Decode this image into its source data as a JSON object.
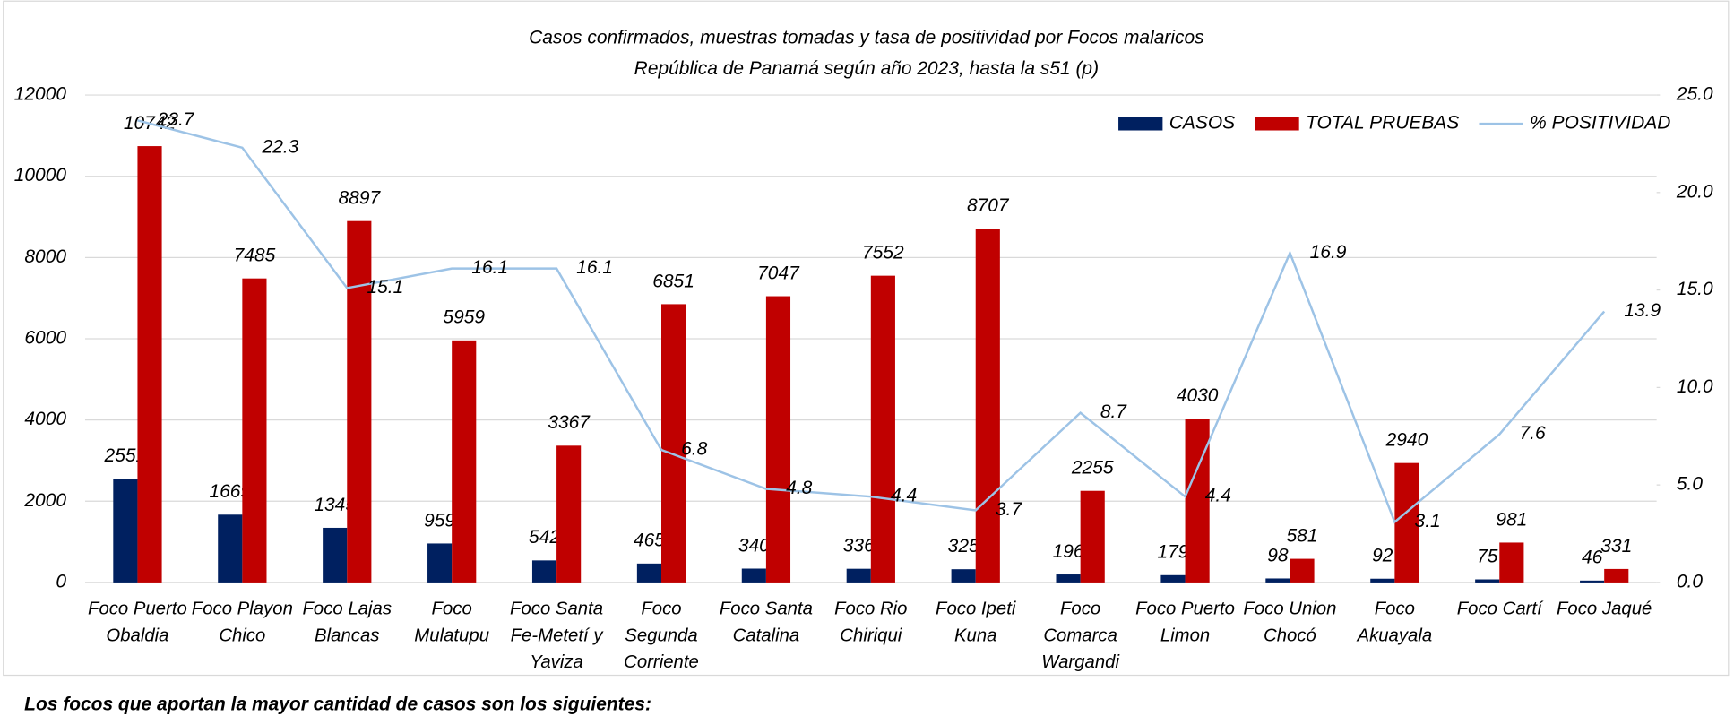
{
  "chart_data": {
    "type": "bar",
    "title": "Casos confirmados, muestras tomadas y tasa de positividad por Focos malaricos",
    "subtitle": "República de Panamá  según año 2023, hasta la s51 (p)",
    "categories": [
      "Foco Puerto Obaldia",
      "Foco Playon Chico",
      "Foco Lajas Blancas",
      "Foco Mulatupu",
      "Foco Santa Fe-Metetí y Yaviza",
      "Foco Segunda Corriente",
      "Foco Santa Catalina",
      "Foco Rio Chiriqui",
      "Foco Ipeti Kuna",
      "Foco Comarca Wargandi",
      "Foco Puerto Limon",
      "Foco Union Chocó",
      "Foco Akuayala",
      "Foco Cartí",
      "Foco Jaqué"
    ],
    "series": [
      {
        "name": "CASOS",
        "color": "#002060",
        "type": "bar",
        "values": [
          2551,
          1669,
          1345,
          959,
          542,
          465,
          340,
          336,
          325,
          196,
          179,
          98,
          92,
          75,
          46
        ]
      },
      {
        "name": "TOTAL PRUEBAS",
        "color": "#c00000",
        "type": "bar",
        "values": [
          10742,
          7485,
          8897,
          5959,
          3367,
          6851,
          7047,
          7552,
          8707,
          2255,
          4030,
          581,
          2940,
          981,
          331
        ]
      },
      {
        "name": "% POSITIVIDAD",
        "color": "#9dc3e6",
        "type": "line",
        "axis": "y2",
        "label_color": "#c00000",
        "values": [
          23.7,
          22.3,
          15.1,
          16.1,
          16.1,
          6.8,
          4.8,
          4.4,
          3.7,
          8.7,
          4.4,
          16.9,
          3.1,
          7.6,
          13.9
        ]
      }
    ],
    "ylim": [
      0,
      12000
    ],
    "yticks": [
      0,
      2000,
      4000,
      6000,
      8000,
      10000,
      12000
    ],
    "y2lim": [
      0,
      25
    ],
    "y2ticks": [
      {
        "value": 0,
        "label": "0.0"
      },
      {
        "value": 5,
        "label": "5.0"
      },
      {
        "value": 10,
        "label": "10.0"
      },
      {
        "value": 15,
        "label": "15.0"
      },
      {
        "value": 20,
        "label": "20.0"
      },
      {
        "value": 25,
        "label": "25.0"
      }
    ],
    "grid": true,
    "legend": "top-right"
  },
  "note": "Los focos que aportan la mayor cantidad de casos son los siguientes:"
}
